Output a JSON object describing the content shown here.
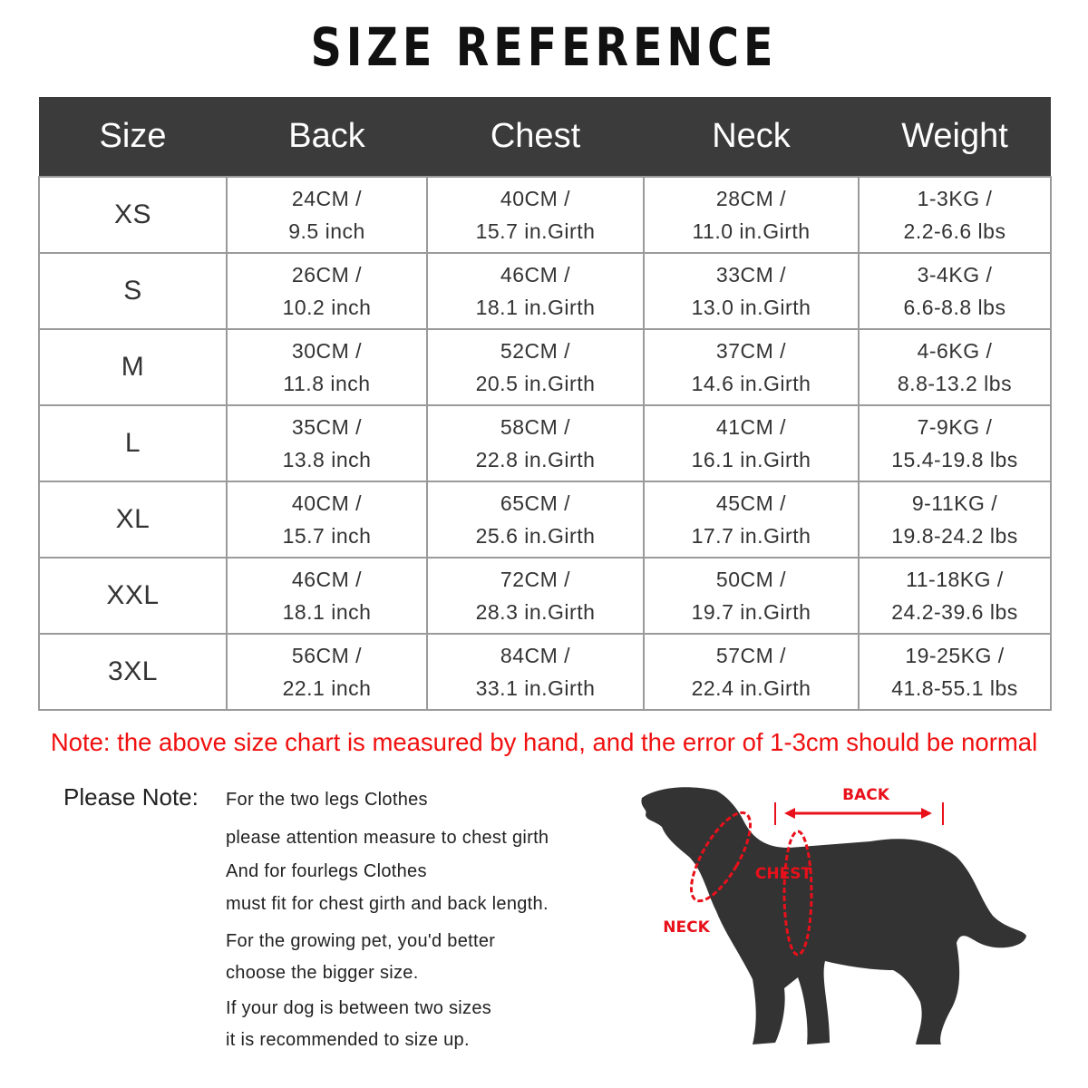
{
  "title": "SIZE REFERENCE",
  "table": {
    "headers": [
      "Size",
      "Back",
      "Chest",
      "Neck",
      "Weight"
    ],
    "rows": [
      {
        "size": "XS",
        "back": [
          "24CM /",
          "9.5 inch"
        ],
        "chest": [
          "40CM /",
          "15.7 in.Girth"
        ],
        "neck": [
          "28CM /",
          "11.0 in.Girth"
        ],
        "weight": [
          "1-3KG /",
          "2.2-6.6 lbs"
        ]
      },
      {
        "size": "S",
        "back": [
          "26CM /",
          "10.2 inch"
        ],
        "chest": [
          "46CM /",
          "18.1 in.Girth"
        ],
        "neck": [
          "33CM /",
          "13.0 in.Girth"
        ],
        "weight": [
          "3-4KG /",
          "6.6-8.8 lbs"
        ]
      },
      {
        "size": "M",
        "back": [
          "30CM /",
          "11.8 inch"
        ],
        "chest": [
          "52CM /",
          "20.5 in.Girth"
        ],
        "neck": [
          "37CM /",
          "14.6 in.Girth"
        ],
        "weight": [
          "4-6KG /",
          "8.8-13.2 lbs"
        ]
      },
      {
        "size": "L",
        "back": [
          "35CM /",
          "13.8 inch"
        ],
        "chest": [
          "58CM /",
          "22.8 in.Girth"
        ],
        "neck": [
          "41CM /",
          "16.1 in.Girth"
        ],
        "weight": [
          "7-9KG /",
          "15.4-19.8 lbs"
        ]
      },
      {
        "size": "XL",
        "back": [
          "40CM /",
          "15.7 inch"
        ],
        "chest": [
          "65CM /",
          "25.6 in.Girth"
        ],
        "neck": [
          "45CM /",
          "17.7 in.Girth"
        ],
        "weight": [
          "9-11KG /",
          "19.8-24.2 lbs"
        ]
      },
      {
        "size": "XXL",
        "back": [
          "46CM /",
          "18.1 inch"
        ],
        "chest": [
          "72CM /",
          "28.3 in.Girth"
        ],
        "neck": [
          "50CM /",
          "19.7 in.Girth"
        ],
        "weight": [
          "11-18KG /",
          "24.2-39.6 lbs"
        ]
      },
      {
        "size": "3XL",
        "back": [
          "56CM /",
          "22.1 inch"
        ],
        "chest": [
          "84CM /",
          "33.1 in.Girth"
        ],
        "neck": [
          "57CM /",
          "22.4 in.Girth"
        ],
        "weight": [
          "19-25KG /",
          "41.8-55.1 lbs"
        ]
      }
    ]
  },
  "note": "Note: the above size chart is measured by hand, and the error of 1-3cm should be normal",
  "please_note": {
    "label": "Please Note:",
    "lines": [
      "For the two legs Clothes",
      "please attention measure to chest girth",
      "And for fourlegs Clothes",
      "must fit for chest girth and back length.",
      "For the growing pet, you'd better",
      "choose the bigger size.",
      "If your dog is between two sizes",
      "it is recommended to size up."
    ]
  },
  "diagram": {
    "back": "BACK",
    "chest": "CHEST",
    "neck": "NECK",
    "accent": "#e8101a",
    "silhouette": "#333333"
  }
}
